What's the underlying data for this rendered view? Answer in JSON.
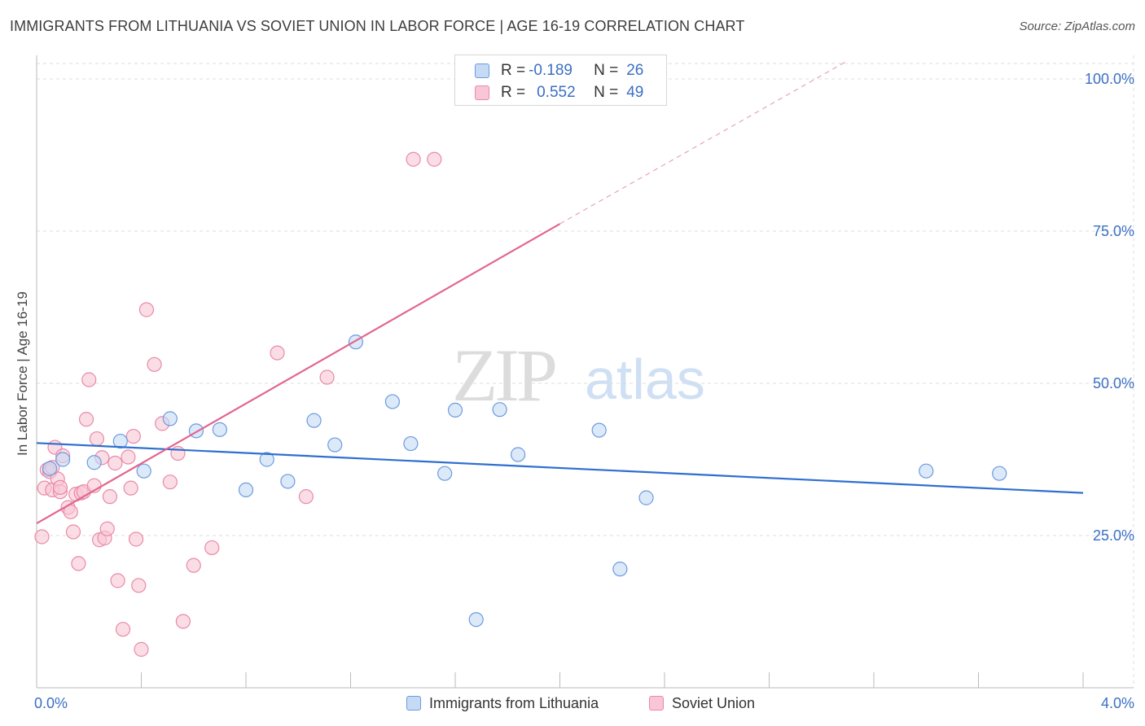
{
  "title": "IMMIGRANTS FROM LITHUANIA VS SOVIET UNION IN LABOR FORCE | AGE 16-19 CORRELATION CHART",
  "source": "Source: ZipAtlas.com",
  "watermark": {
    "zip": "ZIP",
    "atlas": "atlas"
  },
  "legend": {
    "r_label": "R =",
    "n_label": "N =",
    "rows": [
      {
        "r": "-0.189",
        "n": "26"
      },
      {
        "r": "0.552",
        "n": "49"
      }
    ]
  },
  "chart_data": {
    "type": "scatter",
    "title": "IMMIGRANTS FROM LITHUANIA VS SOVIET UNION IN LABOR FORCE | AGE 16-19 CORRELATION CHART",
    "xlabel": "",
    "ylabel": "In Labor Force | Age 16-19",
    "xlim": [
      0,
      4.0
    ],
    "ylim": [
      0,
      102
    ],
    "x_tick_labels": [
      "0.0%",
      "4.0%"
    ],
    "y_ticks": [
      25,
      50,
      75,
      100
    ],
    "y_tick_labels": [
      "25.0%",
      "50.0%",
      "75.0%",
      "100.0%"
    ],
    "grid": true,
    "legend_position": "top-center",
    "series": [
      {
        "name": "Immigrants from Lithuania",
        "color": "#6b9be0",
        "fill": "#c5daf5",
        "r": -0.189,
        "n": 26,
        "points": [
          [
            0.05,
            36.0
          ],
          [
            0.1,
            37.5
          ],
          [
            0.22,
            37.0
          ],
          [
            0.32,
            40.5
          ],
          [
            0.41,
            35.6
          ],
          [
            0.51,
            44.2
          ],
          [
            0.61,
            42.2
          ],
          [
            0.7,
            42.4
          ],
          [
            0.8,
            32.5
          ],
          [
            0.88,
            37.5
          ],
          [
            0.96,
            33.9
          ],
          [
            1.06,
            43.9
          ],
          [
            1.14,
            39.9
          ],
          [
            1.22,
            56.8
          ],
          [
            1.36,
            47.0
          ],
          [
            1.43,
            40.1
          ],
          [
            1.56,
            35.2
          ],
          [
            1.6,
            45.6
          ],
          [
            1.68,
            11.2
          ],
          [
            1.77,
            45.7
          ],
          [
            1.84,
            38.3
          ],
          [
            2.15,
            42.3
          ],
          [
            2.33,
            31.2
          ],
          [
            2.23,
            19.5
          ],
          [
            3.4,
            35.6
          ],
          [
            3.68,
            35.2
          ]
        ],
        "trend": {
          "x": [
            0.0,
            4.0
          ],
          "y": [
            40.2,
            32.0
          ],
          "dashed_after": null
        }
      },
      {
        "name": "Soviet Union",
        "color": "#e98aa8",
        "fill": "#f8c6d6",
        "r": 0.552,
        "n": 49,
        "points": [
          [
            0.02,
            24.8
          ],
          [
            0.03,
            32.8
          ],
          [
            0.04,
            35.8
          ],
          [
            0.05,
            35.5
          ],
          [
            0.06,
            32.5
          ],
          [
            0.07,
            39.5
          ],
          [
            0.08,
            34.3
          ],
          [
            0.09,
            32.2
          ],
          [
            0.1,
            38.1
          ],
          [
            0.12,
            29.6
          ],
          [
            0.13,
            28.9
          ],
          [
            0.14,
            25.6
          ],
          [
            0.15,
            31.8
          ],
          [
            0.16,
            20.4
          ],
          [
            0.17,
            32.0
          ],
          [
            0.18,
            32.2
          ],
          [
            0.19,
            44.1
          ],
          [
            0.2,
            50.6
          ],
          [
            0.22,
            33.2
          ],
          [
            0.23,
            40.9
          ],
          [
            0.24,
            24.3
          ],
          [
            0.25,
            37.8
          ],
          [
            0.26,
            24.6
          ],
          [
            0.27,
            26.1
          ],
          [
            0.28,
            31.4
          ],
          [
            0.3,
            36.9
          ],
          [
            0.31,
            17.6
          ],
          [
            0.33,
            9.6
          ],
          [
            0.35,
            37.9
          ],
          [
            0.36,
            32.8
          ],
          [
            0.37,
            41.3
          ],
          [
            0.38,
            24.4
          ],
          [
            0.39,
            16.8
          ],
          [
            0.4,
            6.3
          ],
          [
            0.42,
            62.1
          ],
          [
            0.45,
            53.1
          ],
          [
            0.48,
            43.4
          ],
          [
            0.51,
            33.8
          ],
          [
            0.54,
            38.5
          ],
          [
            0.56,
            10.9
          ],
          [
            0.6,
            20.1
          ],
          [
            0.67,
            23.0
          ],
          [
            0.92,
            55.0
          ],
          [
            1.03,
            31.4
          ],
          [
            1.11,
            51.0
          ],
          [
            1.44,
            86.8
          ],
          [
            1.52,
            86.8
          ],
          [
            0.06,
            36.2
          ],
          [
            0.09,
            32.9
          ]
        ],
        "trend": {
          "x": [
            0.0,
            2.0
          ],
          "y": [
            27.0,
            76.2
          ],
          "dashed_to": [
            3.1,
            103.0
          ]
        }
      }
    ]
  }
}
